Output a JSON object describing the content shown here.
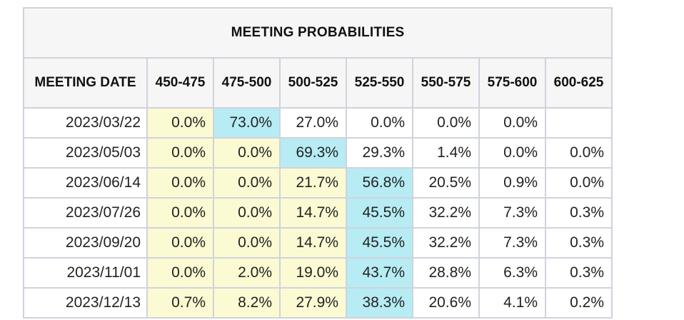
{
  "table": {
    "title": "MEETING PROBABILITIES",
    "date_header": "MEETING DATE",
    "columns": [
      "450-475",
      "475-500",
      "500-525",
      "525-550",
      "550-575",
      "575-600",
      "600-625"
    ],
    "rows": [
      {
        "date": "2023/03/22",
        "values": [
          "0.0%",
          "73.0%",
          "27.0%",
          "0.0%",
          "0.0%",
          "0.0%",
          ""
        ],
        "shade": [
          "yellow",
          "cyan",
          "none",
          "none",
          "none",
          "none",
          "none"
        ]
      },
      {
        "date": "2023/05/03",
        "values": [
          "0.0%",
          "0.0%",
          "69.3%",
          "29.3%",
          "1.4%",
          "0.0%",
          "0.0%"
        ],
        "shade": [
          "yellow",
          "yellow",
          "cyan",
          "none",
          "none",
          "none",
          "none"
        ]
      },
      {
        "date": "2023/06/14",
        "values": [
          "0.0%",
          "0.0%",
          "21.7%",
          "56.8%",
          "20.5%",
          "0.9%",
          "0.0%"
        ],
        "shade": [
          "yellow",
          "yellow",
          "yellow",
          "cyan",
          "none",
          "none",
          "none"
        ]
      },
      {
        "date": "2023/07/26",
        "values": [
          "0.0%",
          "0.0%",
          "14.7%",
          "45.5%",
          "32.2%",
          "7.3%",
          "0.3%"
        ],
        "shade": [
          "yellow",
          "yellow",
          "yellow",
          "cyan",
          "none",
          "none",
          "none"
        ]
      },
      {
        "date": "2023/09/20",
        "values": [
          "0.0%",
          "0.0%",
          "14.7%",
          "45.5%",
          "32.2%",
          "7.3%",
          "0.3%"
        ],
        "shade": [
          "yellow",
          "yellow",
          "yellow",
          "cyan",
          "none",
          "none",
          "none"
        ]
      },
      {
        "date": "2023/11/01",
        "values": [
          "0.0%",
          "2.0%",
          "19.0%",
          "43.7%",
          "28.8%",
          "6.3%",
          "0.3%"
        ],
        "shade": [
          "yellow",
          "yellow",
          "yellow",
          "cyan",
          "none",
          "none",
          "none"
        ]
      },
      {
        "date": "2023/12/13",
        "values": [
          "0.7%",
          "8.2%",
          "27.9%",
          "38.3%",
          "20.6%",
          "4.1%",
          "0.2%"
        ],
        "shade": [
          "yellow",
          "yellow",
          "yellow",
          "cyan",
          "none",
          "none",
          "none"
        ]
      }
    ]
  },
  "colors": {
    "yellow": "#fbfad3",
    "cyan": "#b7ecf4",
    "header_bg": "#f6f6f6",
    "border": "#cfd3dc"
  }
}
